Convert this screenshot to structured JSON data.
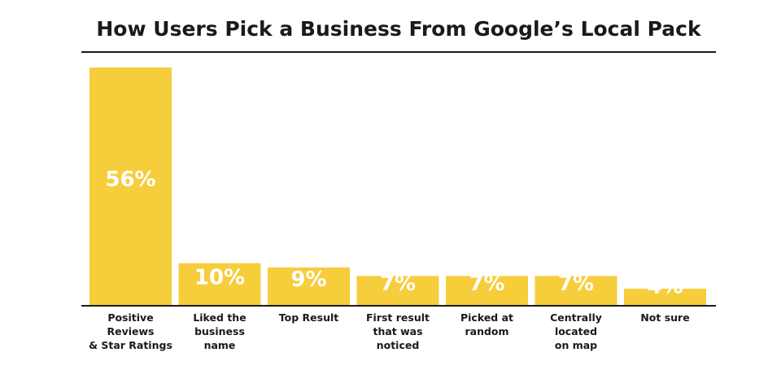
{
  "chart_data": {
    "type": "bar",
    "title": "How Users Pick a Business From Google’s Local Pack",
    "categories": [
      "Positive\nReviews\n& Star Ratings",
      "Liked the\nbusiness\nname",
      "Top Result",
      "First result\nthat was\nnoticed",
      "Picked at\nrandom",
      "Centrally\nlocated\non map",
      "Not sure"
    ],
    "values": [
      56,
      10,
      9,
      7,
      7,
      7,
      4
    ],
    "value_labels": [
      "56%",
      "10%",
      "9%",
      "7%",
      "7%",
      "7%",
      "4%"
    ],
    "color": "#f6cd3b"
  }
}
